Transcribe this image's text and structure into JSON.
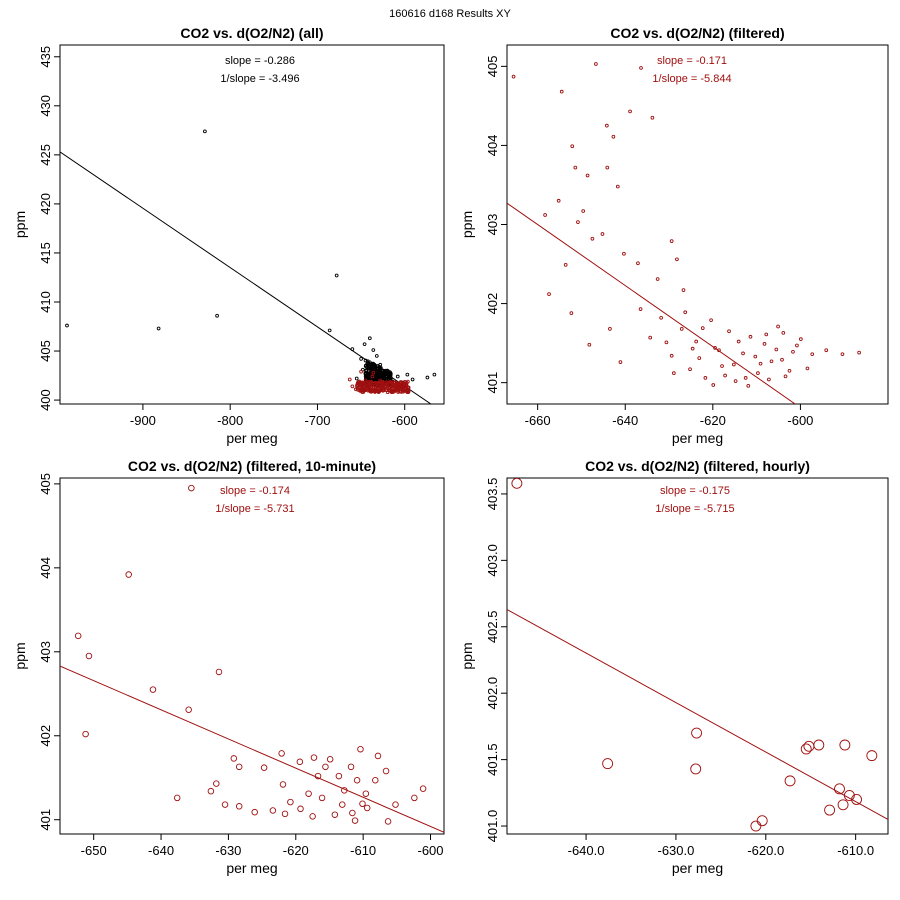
{
  "figure": {
    "title": "160616   d168   Results XY"
  },
  "colors": {
    "black": "#000000",
    "red": "#a01010"
  },
  "chart_data": [
    {
      "type": "scatter",
      "title": "CO2 vs. d(O2/N2) (all)",
      "xlabel": "per meg",
      "ylabel": "ppm",
      "xlim": [
        -995,
        -555
      ],
      "ylim": [
        399.6,
        436.2
      ],
      "xticks": [
        -900,
        -800,
        -700,
        -600
      ],
      "yticks": [
        400,
        405,
        410,
        415,
        420,
        425,
        430,
        435
      ],
      "annotation": {
        "slope": "slope = -0.286",
        "inv_slope": "1/slope = -3.496"
      },
      "fit_line": {
        "x": [
          -995,
          -570
        ],
        "y": [
          425.3,
          399.6
        ]
      },
      "points_all": [
        [
          -987,
          407.6
        ],
        [
          -882,
          407.3
        ],
        [
          -829,
          427.4
        ],
        [
          -815,
          408.6
        ],
        [
          -678,
          412.7
        ],
        [
          -686,
          407.1
        ],
        [
          -660,
          405.2
        ],
        [
          -650,
          404.2
        ],
        [
          -646,
          405.7
        ],
        [
          -640,
          406.3
        ],
        [
          -636,
          405.1
        ],
        [
          -632,
          404.5
        ],
        [
          -628,
          403.6
        ],
        [
          -624,
          402.4
        ],
        [
          -619,
          402.6
        ],
        [
          -614,
          401.9
        ],
        [
          -608,
          402.4
        ],
        [
          -602,
          401.8
        ],
        [
          -597,
          402.6
        ],
        [
          -591,
          402.1
        ],
        [
          -574,
          402.3
        ],
        [
          -566,
          402.6
        ],
        [
          -648,
          403.1
        ],
        [
          -655,
          402.2
        ]
      ],
      "points_filtered": [
        [
          -660,
          401.4
        ],
        [
          -656,
          401.1
        ],
        [
          -652,
          401.9
        ],
        [
          -648,
          401.6
        ],
        [
          -645,
          402.0
        ],
        [
          -642,
          401.2
        ],
        [
          -640,
          401.7
        ],
        [
          -637,
          402.4
        ],
        [
          -634,
          401.5
        ],
        [
          -631,
          401.1
        ],
        [
          -628,
          401.8
        ],
        [
          -625,
          401.3
        ],
        [
          -622,
          401.6
        ],
        [
          -618,
          401.2
        ],
        [
          -615,
          401.4
        ],
        [
          -611,
          401.1
        ],
        [
          -607,
          401.5
        ],
        [
          -603,
          401.2
        ],
        [
          -600,
          401.4
        ],
        [
          -650,
          402.9
        ],
        [
          -663,
          402.1
        ],
        [
          -636,
          402.8
        ],
        [
          -628,
          402.0
        ]
      ]
    },
    {
      "type": "scatter",
      "title": "CO2 vs. d(O2/N2) (filtered)",
      "xlabel": "per meg",
      "ylabel": "ppm",
      "xlim": [
        -667,
        -580
      ],
      "ylim": [
        400.73,
        405.27
      ],
      "xticks": [
        -660,
        -640,
        -620,
        -600
      ],
      "yticks": [
        401,
        402,
        403,
        404,
        405
      ],
      "annotation": {
        "slope": "slope = -0.171",
        "inv_slope": "1/slope = -5.844"
      },
      "fit_line": {
        "x": [
          -667,
          -601.2
        ],
        "y": [
          403.27,
          400.73
        ]
      },
      "points": [
        [
          -665.5,
          404.87
        ],
        [
          -654.5,
          404.68
        ],
        [
          -646.7,
          405.03
        ],
        [
          -652.1,
          403.99
        ],
        [
          -651.4,
          403.72
        ],
        [
          -655.2,
          403.3
        ],
        [
          -649.6,
          403.17
        ],
        [
          -644.2,
          404.25
        ],
        [
          -642.7,
          404.11
        ],
        [
          -638.9,
          404.43
        ],
        [
          -636.4,
          404.98
        ],
        [
          -633.8,
          404.35
        ],
        [
          -644.1,
          403.72
        ],
        [
          -648.6,
          403.62
        ],
        [
          -641.7,
          403.48
        ],
        [
          -650.8,
          403.03
        ],
        [
          -647.5,
          402.82
        ],
        [
          -653.6,
          402.49
        ],
        [
          -645.2,
          402.88
        ],
        [
          -640.3,
          402.63
        ],
        [
          -637.1,
          402.51
        ],
        [
          -632.6,
          402.31
        ],
        [
          -629.4,
          402.79
        ],
        [
          -626.7,
          402.17
        ],
        [
          -652.3,
          401.88
        ],
        [
          -648.2,
          401.48
        ],
        [
          -643.5,
          401.68
        ],
        [
          -641.1,
          401.26
        ],
        [
          -657.4,
          402.12
        ],
        [
          -658.3,
          403.12
        ],
        [
          -628.2,
          402.56
        ],
        [
          -636.5,
          401.93
        ],
        [
          -634.3,
          401.57
        ],
        [
          -631.8,
          401.82
        ],
        [
          -629.4,
          401.34
        ],
        [
          -627.1,
          401.68
        ],
        [
          -625.2,
          401.17
        ],
        [
          -623.8,
          401.52
        ],
        [
          -621.7,
          401.06
        ],
        [
          -619.5,
          401.44
        ],
        [
          -617.9,
          401.21
        ],
        [
          -616.3,
          401.65
        ],
        [
          -614.8,
          401.02
        ],
        [
          -613.1,
          401.37
        ],
        [
          -611.4,
          401.58
        ],
        [
          -609.7,
          401.12
        ],
        [
          -608.2,
          401.49
        ],
        [
          -606.6,
          401.27
        ],
        [
          -605.1,
          401.71
        ],
        [
          -603.4,
          401.08
        ],
        [
          -601.7,
          401.39
        ],
        [
          -599.9,
          401.55
        ],
        [
          -598.4,
          401.18
        ],
        [
          -623.1,
          401.31
        ],
        [
          -620.4,
          401.79
        ],
        [
          -618.6,
          401.41
        ],
        [
          -615.2,
          401.23
        ],
        [
          -612.5,
          401.06
        ],
        [
          -610.3,
          401.33
        ],
        [
          -607.8,
          401.61
        ],
        [
          -604.2,
          401.29
        ],
        [
          -602.5,
          401.15
        ],
        [
          -600.8,
          401.47
        ],
        [
          -597.3,
          401.36
        ],
        [
          -594.1,
          401.41
        ],
        [
          -586.6,
          401.38
        ],
        [
          -590.4,
          401.36
        ],
        [
          -626.3,
          401.89
        ],
        [
          -624.6,
          401.43
        ],
        [
          -619.9,
          400.97
        ],
        [
          -617.2,
          401.09
        ],
        [
          -614.1,
          401.52
        ],
        [
          -611.9,
          400.96
        ],
        [
          -609.1,
          401.24
        ],
        [
          -607.2,
          401.04
        ],
        [
          -605.5,
          401.42
        ],
        [
          -603.9,
          401.63
        ],
        [
          -622.3,
          401.69
        ],
        [
          -628.9,
          401.12
        ],
        [
          -630.6,
          401.51
        ]
      ]
    },
    {
      "type": "scatter",
      "title": "CO2 vs. d(O2/N2) (filtered, 10-minute)",
      "xlabel": "per meg",
      "ylabel": "ppm",
      "xlim": [
        -655,
        -598
      ],
      "ylim": [
        400.83,
        405.07
      ],
      "xticks": [
        -650,
        -640,
        -630,
        -620,
        -610,
        -600
      ],
      "yticks": [
        401,
        402,
        403,
        404,
        405
      ],
      "annotation": {
        "slope": "slope = -0.174",
        "inv_slope": "1/slope = -5.731"
      },
      "fit_line": {
        "x": [
          -655,
          -598
        ],
        "y": [
          402.83,
          400.85
        ]
      },
      "points": [
        [
          -635.5,
          404.95
        ],
        [
          -644.8,
          403.92
        ],
        [
          -652.3,
          403.19
        ],
        [
          -650.7,
          402.95
        ],
        [
          -631.4,
          402.76
        ],
        [
          -641.2,
          402.55
        ],
        [
          -635.9,
          402.31
        ],
        [
          -651.2,
          402.02
        ],
        [
          -629.2,
          401.73
        ],
        [
          -628.4,
          401.63
        ],
        [
          -624.7,
          401.62
        ],
        [
          -622.1,
          401.79
        ],
        [
          -619.4,
          401.69
        ],
        [
          -617.3,
          401.74
        ],
        [
          -615.6,
          401.63
        ],
        [
          -613.6,
          401.52
        ],
        [
          -611.8,
          401.63
        ],
        [
          -610.9,
          401.47
        ],
        [
          -609.6,
          401.31
        ],
        [
          -608.2,
          401.47
        ],
        [
          -606.6,
          401.58
        ],
        [
          -605.2,
          401.18
        ],
        [
          -602.4,
          401.26
        ],
        [
          -601.1,
          401.37
        ],
        [
          -637.6,
          401.26
        ],
        [
          -632.6,
          401.34
        ],
        [
          -631.8,
          401.43
        ],
        [
          -628.4,
          401.16
        ],
        [
          -623.4,
          401.11
        ],
        [
          -621.6,
          401.07
        ],
        [
          -619.3,
          401.13
        ],
        [
          -617.5,
          401.04
        ],
        [
          -616.1,
          401.26
        ],
        [
          -614.2,
          401.06
        ],
        [
          -613.1,
          401.18
        ],
        [
          -611.6,
          401.08
        ],
        [
          -610.1,
          401.19
        ],
        [
          -609.4,
          401.14
        ],
        [
          -606.3,
          400.98
        ],
        [
          -612.8,
          401.35
        ],
        [
          -616.7,
          401.52
        ],
        [
          -618.1,
          401.31
        ],
        [
          -614.9,
          401.72
        ],
        [
          -610.4,
          401.84
        ],
        [
          -607.8,
          401.76
        ],
        [
          -620.8,
          401.21
        ],
        [
          -626.1,
          401.09
        ],
        [
          -630.5,
          401.18
        ],
        [
          -621.9,
          401.42
        ],
        [
          -611.2,
          400.99
        ]
      ]
    },
    {
      "type": "scatter",
      "title": "CO2 vs. d(O2/N2) (filtered, hourly)",
      "xlabel": "per meg",
      "ylabel": "ppm",
      "xlim": [
        -648.8,
        -606.4
      ],
      "ylim": [
        400.94,
        403.62
      ],
      "xticks": [
        -640,
        -630,
        -620,
        -610
      ],
      "yticks": [
        401.0,
        401.5,
        402.0,
        402.5,
        403.0,
        403.5
      ],
      "annotation": {
        "slope": "slope = -0.175",
        "inv_slope": "1/slope = -5.715"
      },
      "fit_line": {
        "x": [
          -648.8,
          -606.4
        ],
        "y": [
          402.63,
          401.05
        ]
      },
      "points": [
        [
          -647.7,
          403.58
        ],
        [
          -637.6,
          401.47
        ],
        [
          -627.7,
          401.7
        ],
        [
          -627.8,
          401.43
        ],
        [
          -621.1,
          401.0
        ],
        [
          -620.4,
          401.04
        ],
        [
          -617.3,
          401.34
        ],
        [
          -615.5,
          401.58
        ],
        [
          -615.2,
          401.6
        ],
        [
          -614.1,
          401.61
        ],
        [
          -612.9,
          401.12
        ],
        [
          -611.8,
          401.28
        ],
        [
          -611.4,
          401.16
        ],
        [
          -611.2,
          401.61
        ],
        [
          -610.7,
          401.23
        ],
        [
          -609.9,
          401.2
        ],
        [
          -608.2,
          401.53
        ]
      ]
    }
  ]
}
